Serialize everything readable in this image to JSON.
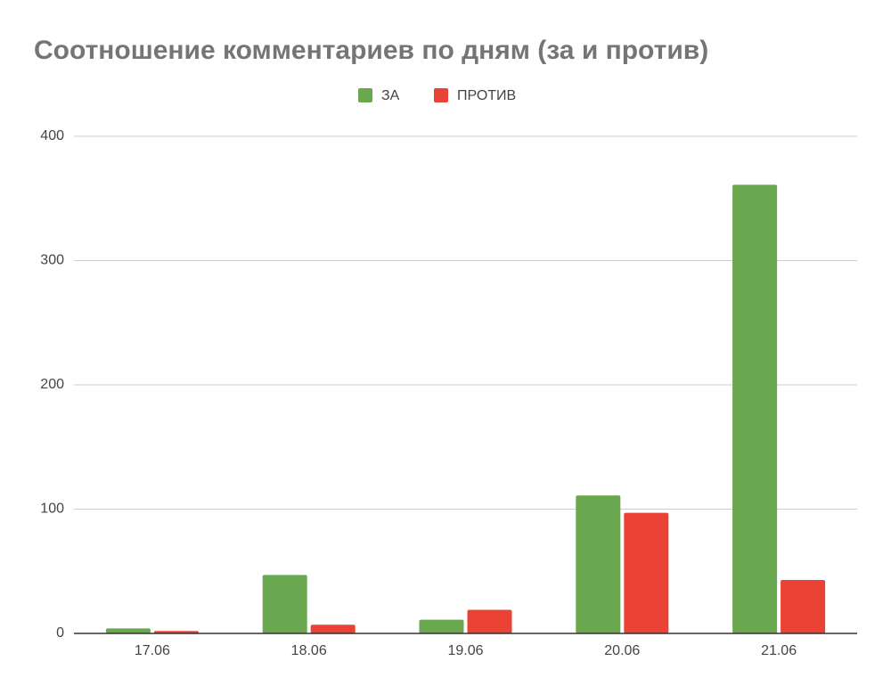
{
  "chart_data": {
    "type": "bar",
    "title": "Соотношение комментариев по дням (за и против)",
    "categories": [
      "17.06",
      "18.06",
      "19.06",
      "20.06",
      "21.06"
    ],
    "series": [
      {
        "name": "ЗА",
        "color": "#6aa84f",
        "values": [
          4,
          47,
          11,
          111,
          361
        ]
      },
      {
        "name": "ПРОТИВ",
        "color": "#ea4335",
        "values": [
          2,
          7,
          19,
          97,
          43
        ]
      }
    ],
    "ylim": [
      0,
      400
    ],
    "yticks": [
      0,
      100,
      200,
      300,
      400
    ],
    "grid": true,
    "legend": "top"
  }
}
